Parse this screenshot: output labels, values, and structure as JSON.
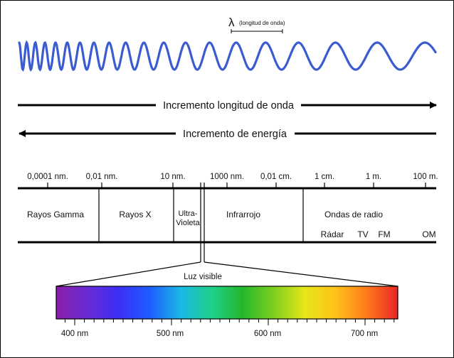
{
  "colors": {
    "wave": "#3b5bd0",
    "line": "#000000",
    "text": "#111111",
    "spectrum": [
      "#8a1fa6",
      "#6a2bd6",
      "#3b2ff4",
      "#1f5cff",
      "#19b8e6",
      "#1fd08a",
      "#23b82c",
      "#7ccf1e",
      "#e6e61a",
      "#ffc21a",
      "#ff7b1a",
      "#e82525"
    ]
  },
  "wavelength": {
    "symbol": "λ",
    "label": "(longitud de onda)"
  },
  "arrows": {
    "wavelength_increase": "Incremento longitud de onda",
    "energy_increase": "Incremento de energía"
  },
  "scale": {
    "ticks": [
      "0,0001 nm.",
      "0,01 nm.",
      "10 nm.",
      "1000 nm.",
      "0,01 cm.",
      "1 cm.",
      "1 m.",
      "100 m."
    ]
  },
  "bands": {
    "gamma": "Rayos Gamma",
    "xray": "Rayos X",
    "uv_line1": "Ultra-",
    "uv_line2": "Violeta",
    "infrared": "Infrarrojo",
    "radio": "Ondas de radio",
    "radar": "Rádar",
    "tv": "TV",
    "fm": "FM",
    "om": "OM"
  },
  "visible": {
    "label": "Luz visible",
    "ticks": [
      "400 nm",
      "500 nm",
      "600 nm",
      "700 nm"
    ]
  }
}
